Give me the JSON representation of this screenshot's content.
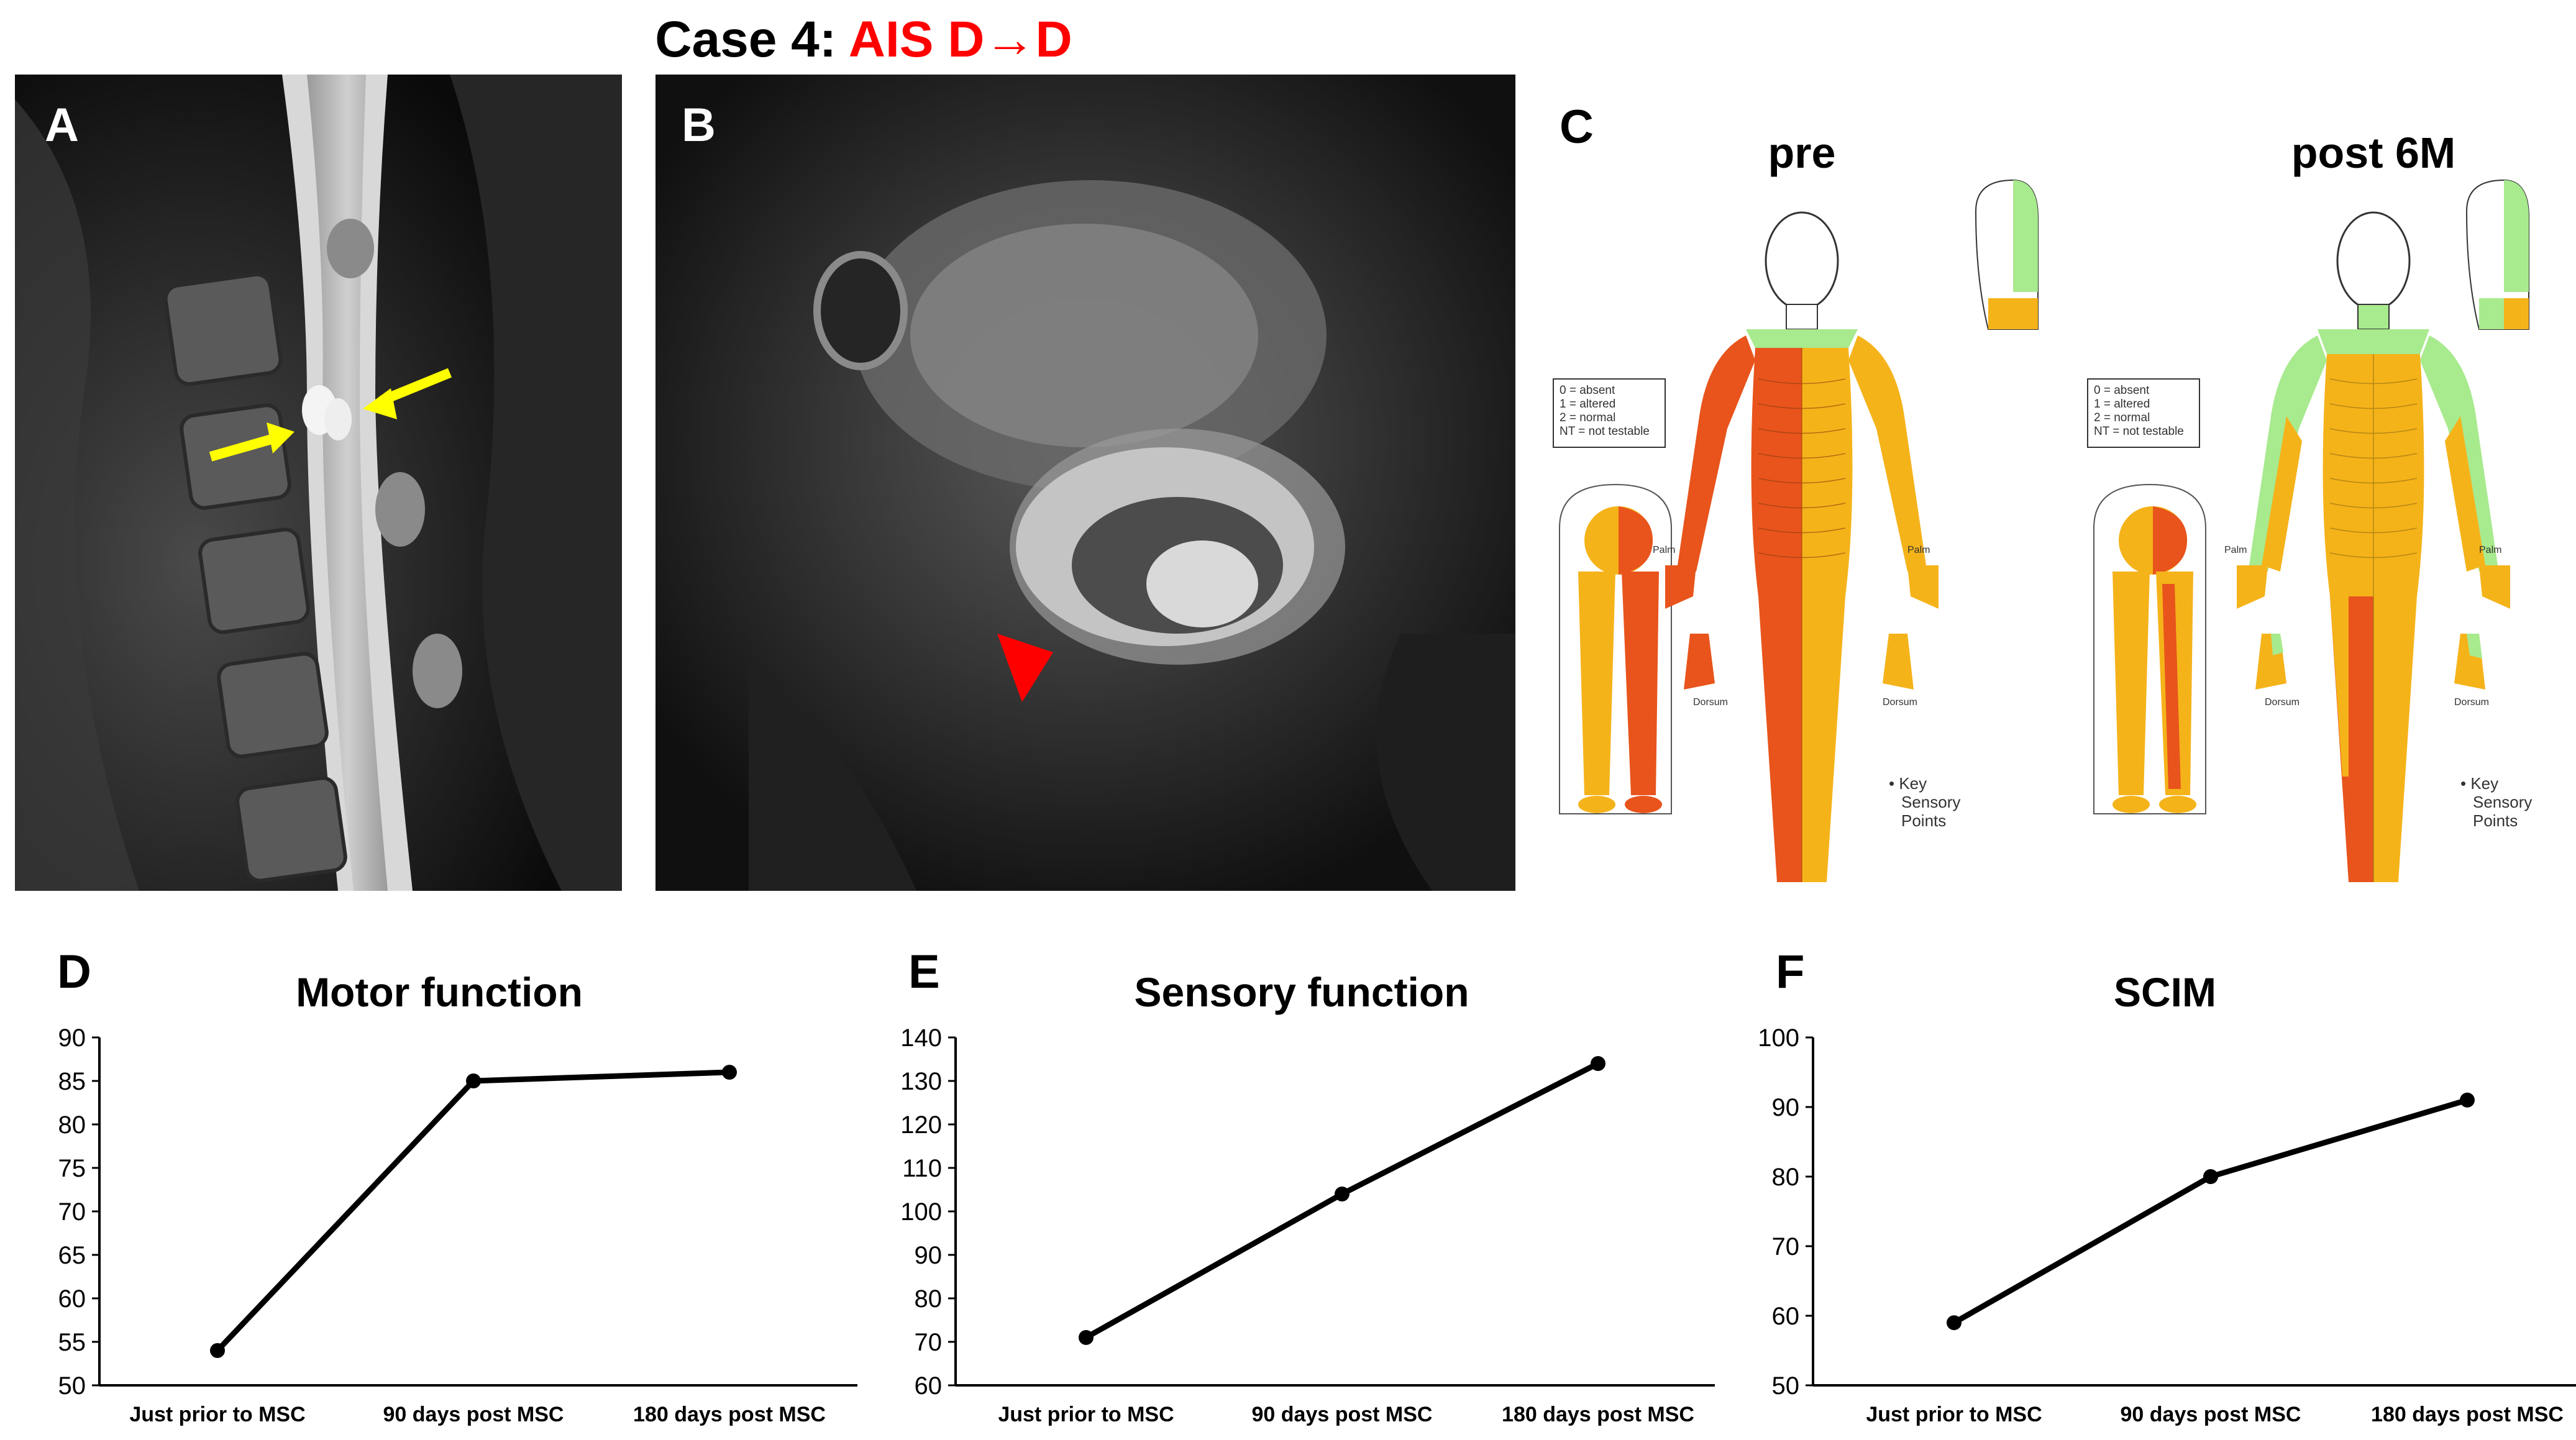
{
  "figure": {
    "title_prefix": "Case 4: ",
    "title_highlight": "AIS D→D",
    "title_highlight_color": "#ff0000"
  },
  "panels": {
    "a": {
      "letter": "A"
    },
    "b": {
      "letter": "B"
    },
    "c": {
      "letter": "C",
      "pre_label": "pre",
      "post_label": "post 6M",
      "legend": [
        "0 = absent",
        "1 = altered",
        "2 = normal",
        "NT = not testable"
      ],
      "palm_label": "Palm",
      "dorsum_label": "Dorsum",
      "key_label": [
        "• Key",
        "Sensory",
        "Points"
      ],
      "colors": {
        "absent": "#e8541c",
        "altered": "#f5b31a",
        "normal": "#a8ea8e"
      }
    },
    "d": {
      "letter": "D"
    },
    "e": {
      "letter": "E"
    },
    "f": {
      "letter": "F"
    }
  },
  "chart_data": [
    {
      "type": "line",
      "title": "Motor function",
      "categories": [
        "Just prior to MSC",
        "90 days post MSC",
        "180 days post MSC"
      ],
      "values": [
        54,
        85,
        86
      ],
      "ylim": [
        50,
        90
      ],
      "yticks": [
        50,
        55,
        60,
        65,
        70,
        75,
        80,
        85,
        90
      ],
      "grid": false
    },
    {
      "type": "line",
      "title": "Sensory function",
      "categories": [
        "Just prior to MSC",
        "90 days post MSC",
        "180 days post MSC"
      ],
      "values": [
        71,
        104,
        134
      ],
      "ylim": [
        60,
        140
      ],
      "yticks": [
        60,
        70,
        80,
        90,
        100,
        110,
        120,
        130,
        140
      ],
      "grid": false
    },
    {
      "type": "line",
      "title": "SCIM",
      "categories": [
        "Just prior to MSC",
        "90 days post MSC",
        "180 days post MSC"
      ],
      "values": [
        59,
        80,
        91
      ],
      "ylim": [
        50,
        100
      ],
      "yticks": [
        50,
        60,
        70,
        80,
        90,
        100
      ],
      "grid": false
    }
  ]
}
